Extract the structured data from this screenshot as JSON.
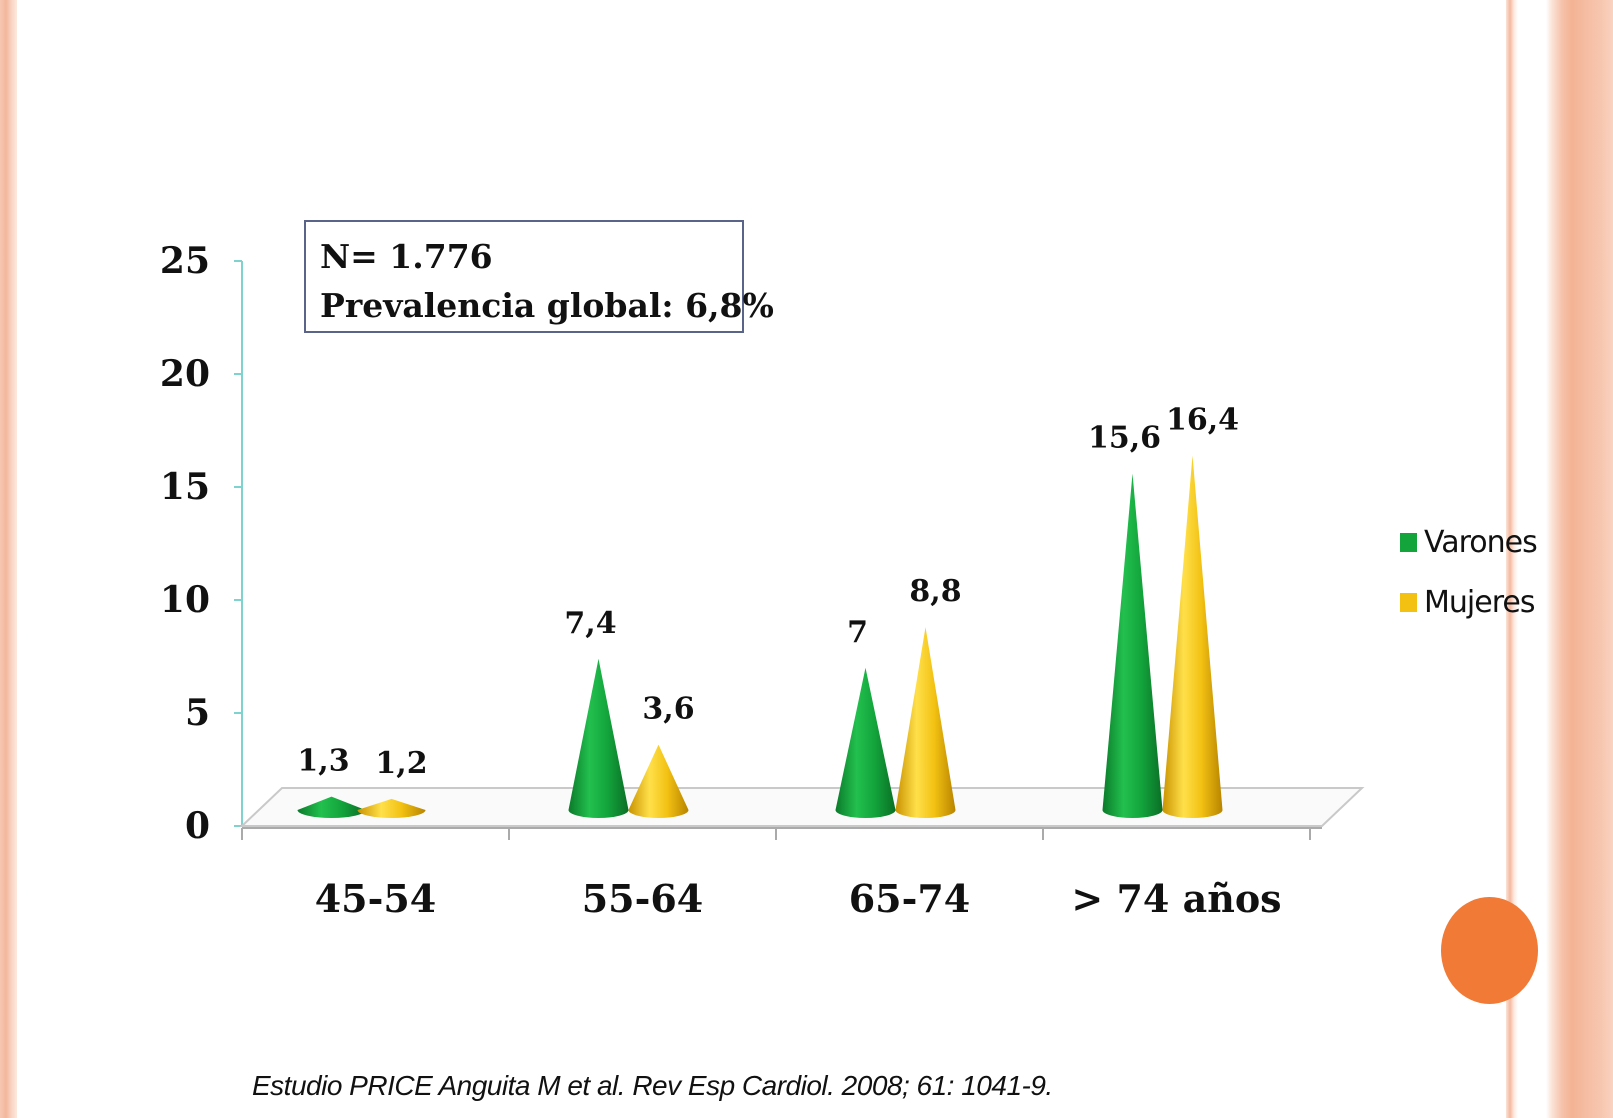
{
  "info_box": {
    "line1": "N= 1.776",
    "line2": "Prevalencia global: 6,8%"
  },
  "citation": "Estudio PRICE   Anguita M et al. Rev Esp Cardiol. 2008; 61: 1041-9.",
  "colors": {
    "varones": "#13a43c",
    "mujeres": "#f2c112",
    "accent_dot": "#f07a36"
  },
  "chart_data": {
    "type": "bar",
    "bar_shape": "cone-3d",
    "categories": [
      "45-54",
      "55-64",
      "65-74",
      "> 74 años"
    ],
    "series": [
      {
        "name": "Varones",
        "values": [
          1.3,
          7.4,
          7,
          15.6
        ],
        "labels": [
          "1,3",
          "7,4",
          "7",
          "15,6"
        ]
      },
      {
        "name": "Mujeres",
        "values": [
          1.2,
          3.6,
          8.8,
          16.4
        ],
        "labels": [
          "1,2",
          "3,6",
          "8,8",
          "16,4"
        ]
      }
    ],
    "ylim": [
      0,
      25
    ],
    "yticks": [
      "0",
      "5",
      "10",
      "15",
      "20",
      "25"
    ],
    "grid": false,
    "legend_position": "right"
  }
}
